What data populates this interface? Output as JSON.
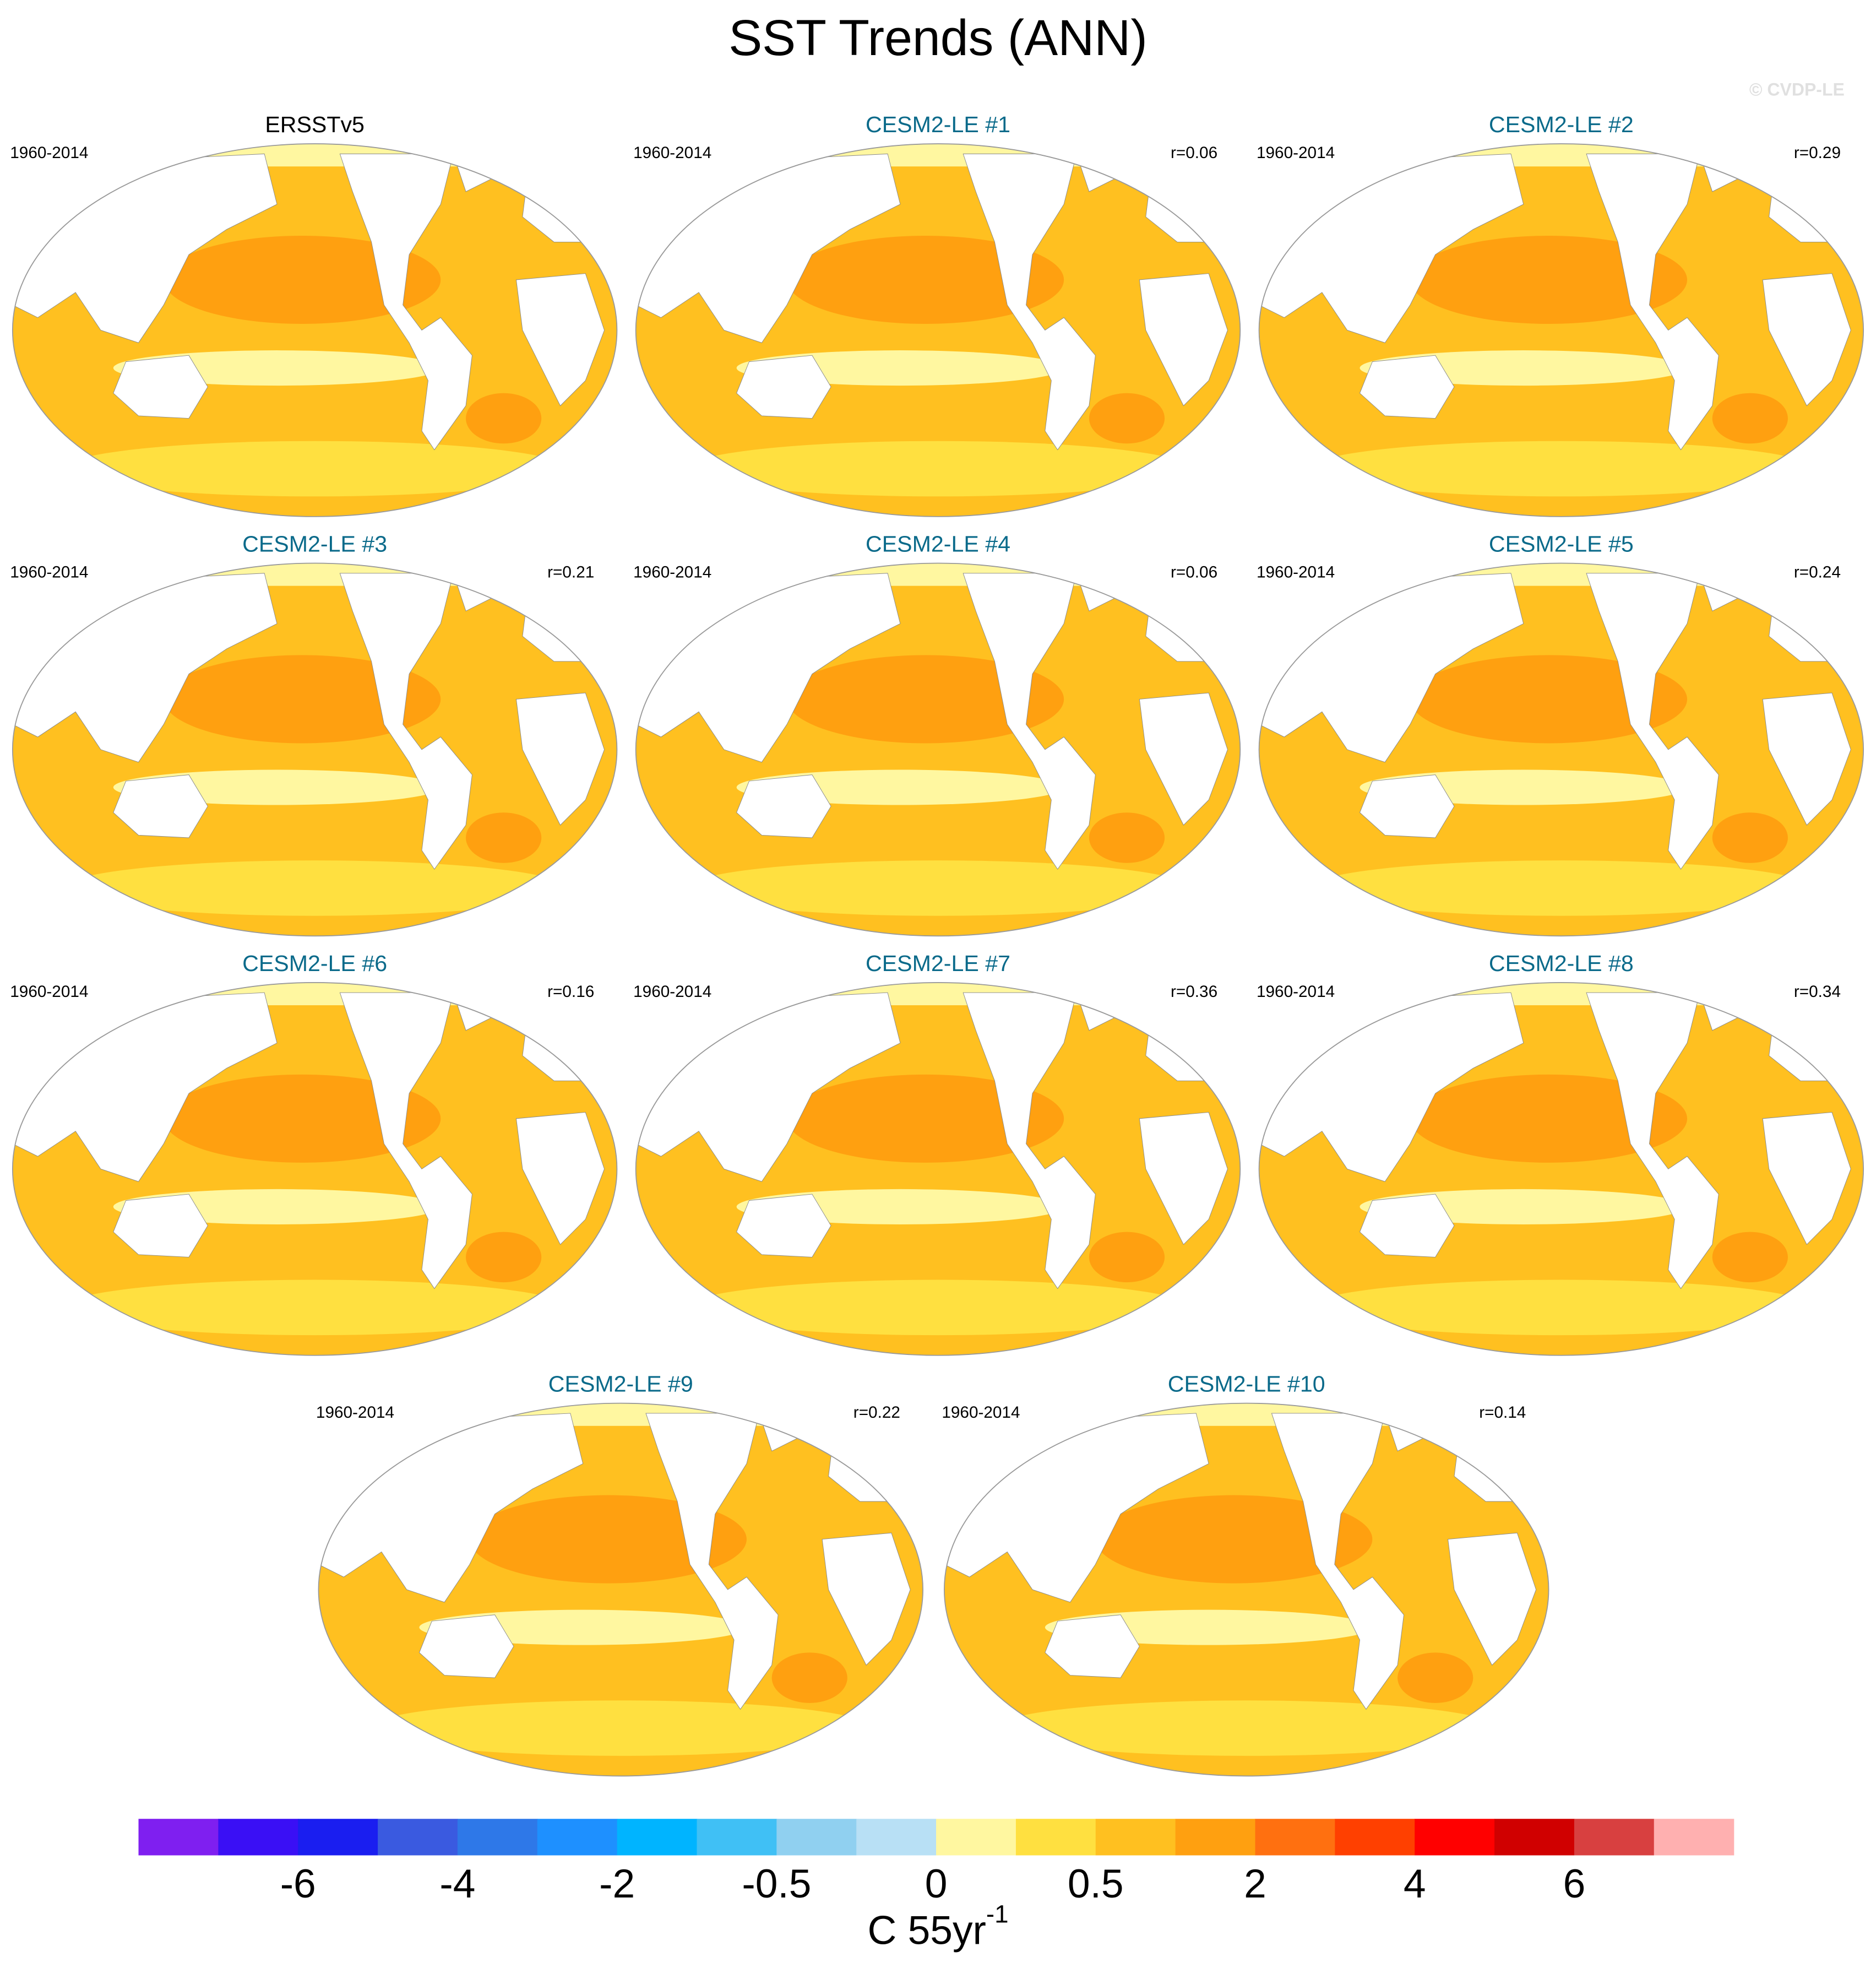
{
  "title": "SST Trends (ANN)",
  "watermark": "© CVDP-LE",
  "panels": [
    {
      "title": "ERSSTv5",
      "period": "1960-2014"
    },
    {
      "title": "CESM2-LE #1",
      "period": "1960-2014",
      "r": "r=0.06"
    },
    {
      "title": "CESM2-LE #2",
      "period": "1960-2014",
      "r": "r=0.29"
    },
    {
      "title": "CESM2-LE #3",
      "period": "1960-2014",
      "r": "r=0.21"
    },
    {
      "title": "CESM2-LE #4",
      "period": "1960-2014",
      "r": "r=0.06"
    },
    {
      "title": "CESM2-LE #5",
      "period": "1960-2014",
      "r": "r=0.24"
    },
    {
      "title": "CESM2-LE #6",
      "period": "1960-2014",
      "r": "r=0.16"
    },
    {
      "title": "CESM2-LE #7",
      "period": "1960-2014",
      "r": "r=0.36"
    },
    {
      "title": "CESM2-LE #8",
      "period": "1960-2014",
      "r": "r=0.34"
    },
    {
      "title": "CESM2-LE #9",
      "period": "1960-2014",
      "r": "r=0.22"
    },
    {
      "title": "CESM2-LE #10",
      "period": "1960-2014",
      "r": "r=0.14"
    }
  ],
  "colorbar": {
    "colors": [
      "#7f1ff0",
      "#3a0ff5",
      "#1a1ef0",
      "#3a5ae0",
      "#2e78e8",
      "#1e90ff",
      "#00b4ff",
      "#40c0f5",
      "#90d0f0",
      "#b8e0f5",
      "#fff7a0",
      "#ffe040",
      "#ffc020",
      "#ffa010",
      "#ff7010",
      "#ff4000",
      "#ff0000",
      "#d00000",
      "#d84040",
      "#ffb0b0"
    ],
    "labels": [
      "-6",
      "-4",
      "-2",
      "-0.5",
      "0",
      "0.5",
      "2",
      "4",
      "6"
    ],
    "unit": "C 55yr",
    "unit_sup": "-1"
  }
}
